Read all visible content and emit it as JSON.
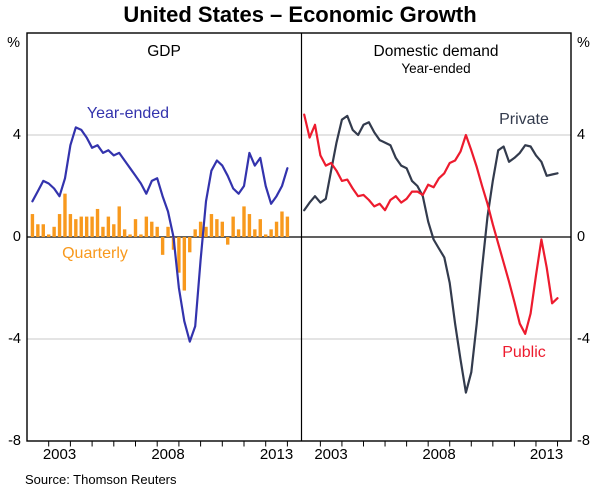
{
  "title": "United States – Economic Growth",
  "source": "Source: Thomson Reuters",
  "y_axis": {
    "unit": "%",
    "ticks": [
      "4",
      "0",
      "-4",
      "-8"
    ]
  },
  "x_axis": {
    "labels": [
      "2003",
      "2008",
      "2013"
    ]
  },
  "colors": {
    "blue": "#3333AD",
    "orange": "#F8991D",
    "dark": "#333B4D",
    "red": "#ED1B2E",
    "grid": "#C8C8C8",
    "axis": "#000000"
  },
  "panels": {
    "left": {
      "header": "GDP",
      "line_label": "Year-ended",
      "bar_label": "Quarterly"
    },
    "right": {
      "header": "Domestic demand",
      "subheader": "Year-ended",
      "private_label": "Private",
      "public_label": "Public"
    }
  },
  "chart_data": [
    {
      "panel_title": "GDP",
      "type": "line",
      "x_quarters_start": "2002Q1",
      "x_quarters_end": "2013Q4",
      "x_tick_labels": [
        "2003",
        "2008",
        "2013"
      ],
      "ylim": [
        -8,
        8
      ],
      "yticks": [
        4,
        0,
        -4,
        -8
      ],
      "unit": "%",
      "grid": "horizontal",
      "series": [
        {
          "name": "Year-ended",
          "style": "line",
          "color": "#3333AD",
          "values": [
            1.4,
            1.8,
            2.2,
            2.1,
            1.9,
            1.6,
            2.3,
            3.6,
            4.3,
            4.2,
            3.9,
            3.5,
            3.6,
            3.3,
            3.4,
            3.2,
            3.3,
            3.0,
            2.7,
            2.4,
            2.1,
            1.7,
            2.2,
            2.3,
            1.6,
            1.0,
            0.0,
            -2.0,
            -3.3,
            -4.1,
            -3.5,
            -0.9,
            1.4,
            2.6,
            3.0,
            2.8,
            2.4,
            1.9,
            1.7,
            2.0,
            3.3,
            2.8,
            3.1,
            2.0,
            1.3,
            1.6,
            2.0,
            2.7
          ]
        },
        {
          "name": "Quarterly",
          "style": "bar",
          "color": "#F8991D",
          "values": [
            0.9,
            0.5,
            0.5,
            0.1,
            0.4,
            0.9,
            1.7,
            0.9,
            0.7,
            0.8,
            0.8,
            0.8,
            1.1,
            0.4,
            0.8,
            0.5,
            1.2,
            0.3,
            0.1,
            0.7,
            0.1,
            0.8,
            0.6,
            0.4,
            -0.7,
            0.4,
            -0.5,
            -1.4,
            -2.1,
            -0.6,
            0.3,
            0.6,
            0.4,
            0.9,
            0.7,
            0.6,
            -0.3,
            0.8,
            0.3,
            1.2,
            0.9,
            0.3,
            0.7,
            0.1,
            0.3,
            0.6,
            1.0,
            0.8
          ]
        }
      ]
    },
    {
      "panel_title": "Domestic demand",
      "panel_subtitle": "Year-ended",
      "type": "line",
      "x_quarters_start": "2002Q1",
      "x_quarters_end": "2013Q4",
      "x_tick_labels": [
        "2003",
        "2008",
        "2013"
      ],
      "ylim": [
        -8,
        8
      ],
      "yticks": [
        4,
        0,
        -4,
        -8
      ],
      "unit": "%",
      "grid": "horizontal",
      "series": [
        {
          "name": "Private",
          "style": "line",
          "color": "#333B4D",
          "values": [
            1.05,
            1.35,
            1.6,
            1.35,
            1.5,
            2.6,
            3.7,
            4.6,
            4.75,
            4.2,
            4.0,
            4.4,
            4.5,
            4.1,
            3.8,
            3.7,
            3.6,
            3.1,
            2.8,
            2.7,
            2.2,
            2.0,
            1.6,
            0.6,
            -0.1,
            -0.45,
            -0.8,
            -1.8,
            -3.4,
            -4.8,
            -6.1,
            -5.3,
            -3.4,
            -1.2,
            0.8,
            2.2,
            3.4,
            3.55,
            2.95,
            3.1,
            3.3,
            3.6,
            3.55,
            3.2,
            2.95,
            2.4,
            2.45,
            2.5
          ]
        },
        {
          "name": "Public",
          "style": "line",
          "color": "#ED1B2E",
          "values": [
            4.8,
            3.9,
            4.4,
            3.2,
            2.8,
            2.9,
            2.6,
            2.2,
            2.25,
            1.9,
            1.6,
            1.65,
            1.45,
            1.2,
            1.3,
            1.05,
            1.45,
            1.6,
            1.35,
            1.5,
            1.78,
            1.78,
            1.65,
            2.05,
            1.95,
            2.3,
            2.5,
            2.9,
            3.0,
            3.35,
            4.0,
            3.4,
            2.75,
            2.0,
            1.3,
            0.5,
            -0.25,
            -1.0,
            -1.75,
            -2.55,
            -3.4,
            -3.8,
            -3.0,
            -1.5,
            -0.1,
            -1.2,
            -2.6,
            -2.4
          ]
        }
      ]
    }
  ]
}
